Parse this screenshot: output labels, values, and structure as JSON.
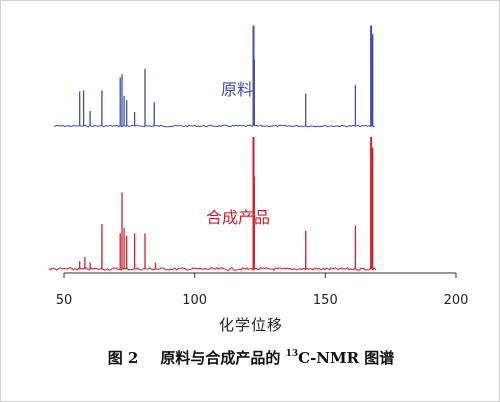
{
  "chart_data": {
    "type": "line",
    "title": "",
    "xlabel": "化学位移",
    "ylabel": "",
    "xlim": [
      50,
      200
    ],
    "x_ticks": [
      50,
      100,
      150,
      200
    ],
    "grid": false,
    "series": [
      {
        "name": "原料",
        "color": "#3f4fa8",
        "peaks": [
          [
            56,
            0.32
          ],
          [
            57.5,
            0.33
          ],
          [
            60,
            0.14
          ],
          [
            64.5,
            0.33
          ],
          [
            71.5,
            0.45
          ],
          [
            72.2,
            0.48
          ],
          [
            73,
            0.28
          ],
          [
            74,
            0.24
          ],
          [
            77,
            0.13
          ],
          [
            81,
            0.53
          ],
          [
            84.5,
            0.22
          ],
          [
            122.5,
            0.93
          ],
          [
            122.8,
            0.62
          ],
          [
            142.5,
            0.3
          ],
          [
            161.5,
            0.38
          ],
          [
            167.5,
            0.93
          ],
          [
            168,
            0.85
          ]
        ]
      },
      {
        "name": "合成产品",
        "color": "#d1202a",
        "peaks": [
          [
            56,
            0.06
          ],
          [
            58,
            0.09
          ],
          [
            60,
            0.05
          ],
          [
            64.5,
            0.34
          ],
          [
            71.5,
            0.27
          ],
          [
            72.2,
            0.58
          ],
          [
            73,
            0.31
          ],
          [
            74,
            0.25
          ],
          [
            77,
            0.27
          ],
          [
            81,
            0.27
          ],
          [
            85,
            0.05
          ],
          [
            122.5,
            1.0
          ],
          [
            122.8,
            0.7
          ],
          [
            142.5,
            0.29
          ],
          [
            161.5,
            0.33
          ],
          [
            167.5,
            1.0
          ],
          [
            168,
            0.92
          ]
        ]
      }
    ]
  },
  "caption": {
    "figure_label": "图 2",
    "text_before": "原料与合成产品的 ",
    "superscript": "13",
    "text_after": "C-NMR 图谱"
  }
}
